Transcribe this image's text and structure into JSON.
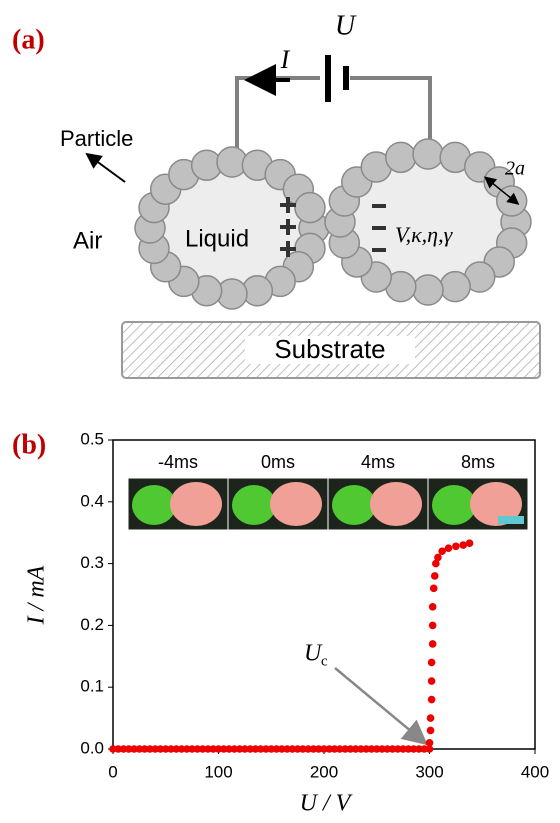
{
  "panel_a": {
    "label": "(a)",
    "voltage": "U",
    "current": "I",
    "particle": "Particle",
    "air": "Air",
    "liquid": "Liquid",
    "params": "V,κ,η,γ",
    "diameter": "2a",
    "substrate": "Substrate"
  },
  "chart_data": {
    "type": "scatter",
    "panel_label": "(b)",
    "x_label": "U / V",
    "y_label": "I / mA",
    "annotation_symbol": "U",
    "annotation_subscript": "c",
    "inset_labels": [
      "-4ms",
      "0ms",
      "4ms",
      "8ms"
    ],
    "x": [
      0,
      5,
      10,
      15,
      20,
      25,
      30,
      35,
      40,
      45,
      50,
      55,
      60,
      65,
      70,
      75,
      80,
      85,
      90,
      95,
      100,
      105,
      110,
      115,
      120,
      125,
      130,
      135,
      140,
      145,
      150,
      155,
      160,
      165,
      170,
      175,
      180,
      185,
      190,
      195,
      200,
      205,
      210,
      215,
      220,
      225,
      230,
      235,
      240,
      245,
      250,
      255,
      260,
      265,
      270,
      275,
      280,
      285,
      290,
      295,
      300,
      300,
      301,
      301,
      302,
      302,
      302,
      303,
      303,
      303,
      304,
      305,
      306,
      308,
      312,
      318,
      325,
      332,
      338
    ],
    "series": [
      {
        "name": "I",
        "color": "#ee0000",
        "values": [
          0,
          0,
          0,
          0,
          0,
          0,
          0,
          0,
          0,
          0,
          0,
          0,
          0,
          0,
          0,
          0,
          0,
          0,
          0,
          0,
          0,
          0,
          0,
          0,
          0,
          0,
          0,
          0,
          0,
          0,
          0,
          0,
          0,
          0,
          0,
          0,
          0,
          0,
          0,
          0,
          0,
          0,
          0,
          0,
          0,
          0,
          0,
          0,
          0,
          0,
          0,
          0,
          0,
          0,
          0,
          0,
          0,
          0,
          0,
          0,
          0,
          0.01,
          0.03,
          0.05,
          0.08,
          0.11,
          0.14,
          0.17,
          0.2,
          0.23,
          0.26,
          0.28,
          0.3,
          0.31,
          0.32,
          0.325,
          0.328,
          0.33,
          0.333
        ]
      }
    ],
    "xlim": [
      0,
      400
    ],
    "ylim": [
      0,
      0.5
    ],
    "xticks": [
      0,
      100,
      200,
      300,
      400
    ],
    "yticks": [
      {
        "value": 0,
        "label": "0.0"
      },
      0.1,
      0.2,
      0.3,
      0.4,
      0.5
    ]
  }
}
